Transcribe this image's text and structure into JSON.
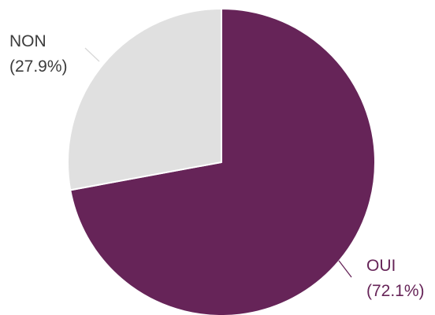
{
  "chart_data": {
    "type": "pie",
    "start_angle_deg": 0,
    "direction": "clockwise",
    "slices": [
      {
        "label": "OUI",
        "value": 72.1,
        "value_label": "(72.1%)",
        "color": "#662458",
        "label_color": "#662458",
        "leader_color": "#662458"
      },
      {
        "label": "NON",
        "value": 27.9,
        "value_label": "(27.9%)",
        "color": "#e0e0e0",
        "label_color": "#3c3c3c",
        "leader_color": "#d8d8d8"
      }
    ],
    "legend": "none"
  }
}
